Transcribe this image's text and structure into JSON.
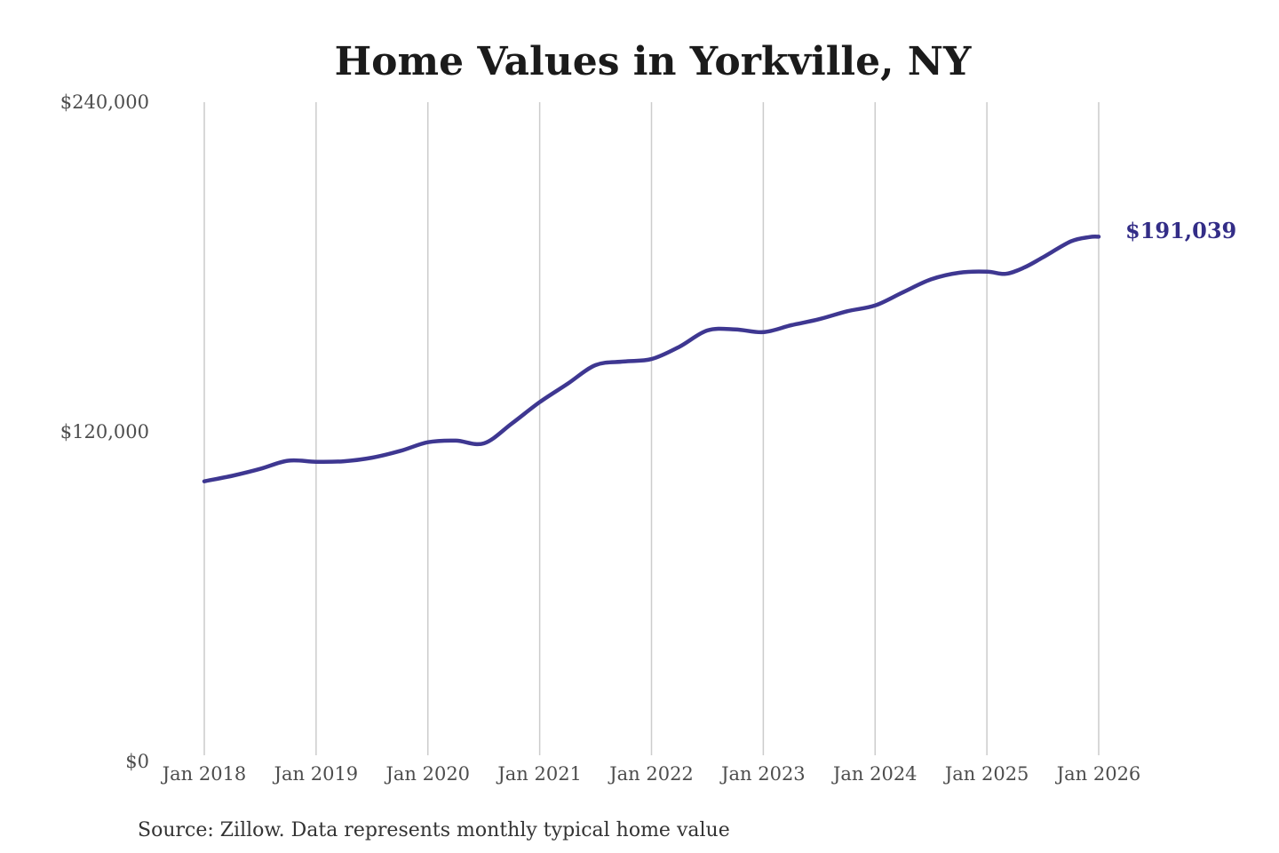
{
  "title": "Home Values in Yorkville, NY",
  "source_note": "Source: Zillow. Data represents monthly typical home value",
  "colors": {
    "line": "#3e3791",
    "end_label": "#332d87",
    "title_text": "#1b1b1b",
    "axis_text": "#4d4d4d",
    "source_text": "#333333",
    "gridline": "#cccccc",
    "background": "#ffffff"
  },
  "chart_data": {
    "type": "line",
    "title": "Home Values in Yorkville, NY",
    "xlabel": "",
    "ylabel": "",
    "ylim": [
      0,
      240000
    ],
    "grid": "vertical-only",
    "legend": "none",
    "y_ticks": [
      {
        "label": "$0",
        "value": 0
      },
      {
        "label": "$120,000",
        "value": 120000
      },
      {
        "label": "$240,000",
        "value": 240000
      }
    ],
    "x_ticks": [
      {
        "label": "Jan 2018",
        "month_index": 0
      },
      {
        "label": "Jan 2019",
        "month_index": 12
      },
      {
        "label": "Jan 2020",
        "month_index": 24
      },
      {
        "label": "Jan 2021",
        "month_index": 36
      },
      {
        "label": "Jan 2022",
        "month_index": 48
      },
      {
        "label": "Jan 2023",
        "month_index": 60
      },
      {
        "label": "Jan 2024",
        "month_index": 72
      },
      {
        "label": "Jan 2025",
        "month_index": 84
      },
      {
        "label": "Jan 2026",
        "month_index": 96
      }
    ],
    "series": [
      {
        "name": "Typical home value",
        "points": [
          {
            "date": "2018-01",
            "value": 102000
          },
          {
            "date": "2018-04",
            "value": 104000
          },
          {
            "date": "2018-07",
            "value": 106500
          },
          {
            "date": "2018-10",
            "value": 109500
          },
          {
            "date": "2019-01",
            "value": 109100
          },
          {
            "date": "2019-04",
            "value": 109300
          },
          {
            "date": "2019-07",
            "value": 110600
          },
          {
            "date": "2019-10",
            "value": 113000
          },
          {
            "date": "2020-01",
            "value": 116200
          },
          {
            "date": "2020-04",
            "value": 116800
          },
          {
            "date": "2020-07",
            "value": 115800
          },
          {
            "date": "2020-10",
            "value": 123000
          },
          {
            "date": "2021-01",
            "value": 130800
          },
          {
            "date": "2021-04",
            "value": 137500
          },
          {
            "date": "2021-07",
            "value": 144300
          },
          {
            "date": "2021-10",
            "value": 145600
          },
          {
            "date": "2022-01",
            "value": 146500
          },
          {
            "date": "2022-04",
            "value": 151000
          },
          {
            "date": "2022-07",
            "value": 156900
          },
          {
            "date": "2022-10",
            "value": 157300
          },
          {
            "date": "2023-01",
            "value": 156300
          },
          {
            "date": "2023-04",
            "value": 158800
          },
          {
            "date": "2023-07",
            "value": 161000
          },
          {
            "date": "2023-10",
            "value": 163900
          },
          {
            "date": "2024-01",
            "value": 166000
          },
          {
            "date": "2024-04",
            "value": 170800
          },
          {
            "date": "2024-07",
            "value": 175500
          },
          {
            "date": "2024-10",
            "value": 177900
          },
          {
            "date": "2025-01",
            "value": 178300
          },
          {
            "date": "2025-03",
            "value": 177500
          },
          {
            "date": "2025-05",
            "value": 179800
          },
          {
            "date": "2025-07",
            "value": 183500
          },
          {
            "date": "2025-10",
            "value": 189300
          },
          {
            "date": "2025-12",
            "value": 190900
          },
          {
            "date": "2026-01",
            "value": 191039
          }
        ]
      }
    ],
    "end_point": {
      "label": "$191,039",
      "value": 191039,
      "date": "2026-01"
    },
    "source": "Source: Zillow. Data represents monthly typical home value"
  }
}
